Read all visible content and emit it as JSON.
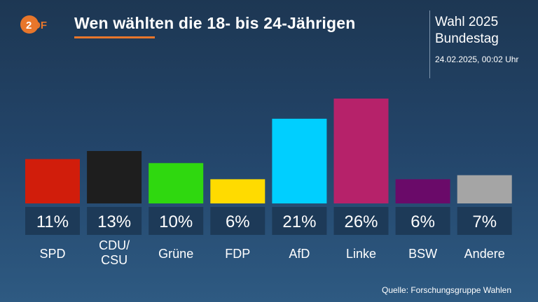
{
  "logo": {
    "text": "ZDF",
    "color": "#e8762b"
  },
  "header": {
    "title": "Wen wählten die 18- bis 24-Jährigen",
    "election": "Wahl 2025",
    "body": "Bundestag",
    "timestamp": "24.02.2025, 00:02 Uhr"
  },
  "source": "Quelle: Forschungsgruppe Wahlen",
  "chart_data": {
    "type": "bar",
    "title": "Wen wählten die 18- bis 24-Jährigen",
    "categories": [
      "SPD",
      "CDU/\nCSU",
      "Grüne",
      "FDP",
      "AfD",
      "Linke",
      "BSW",
      "Andere"
    ],
    "values": [
      11,
      13,
      10,
      6,
      21,
      26,
      6,
      7
    ],
    "value_labels": [
      "11%",
      "13%",
      "10%",
      "6%",
      "21%",
      "26%",
      "6%",
      "7%"
    ],
    "colors": [
      "#d11d0b",
      "#1e1e1e",
      "#2fd80f",
      "#ffdb00",
      "#00cfff",
      "#b6226a",
      "#6a0a69",
      "#a5a5a5"
    ],
    "unit": "%",
    "grid": false,
    "legend": "none"
  }
}
